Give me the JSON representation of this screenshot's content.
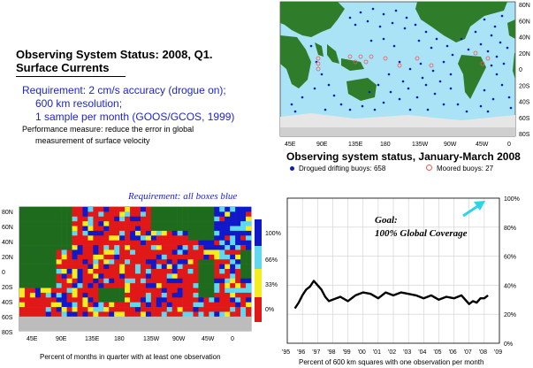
{
  "left_text": {
    "title_line1": "Observing System Status:  2008, Q1.",
    "title_line2": "Surface Currents",
    "requirement_1": "Requirement: 2 cm/s accuracy (drogue on);",
    "requirement_2": "600 km resolution;",
    "requirement_3": "1 sample per month (GOOS/GCOS, 1999)",
    "performance_1": "Performance measure: reduce the error in global",
    "performance_2": "measurement of surface velocity"
  },
  "buoy_map": {
    "lat_labels": [
      "80N",
      "60N",
      "40N",
      "20N",
      "0",
      "20S",
      "40S",
      "60S",
      "80S"
    ],
    "lon_labels": [
      "45E",
      "90E",
      "135E",
      "180",
      "135W",
      "90W",
      "45W",
      "0"
    ],
    "title": "Observing system status, January-March 2008",
    "legend_drifting": "Drogued drifting buoys: 658",
    "legend_moored": "Moored buoys: 27",
    "colors": {
      "ocean": "#a9e3f5",
      "land": "#2f7d2a",
      "ice": "#d8d8d8",
      "drifter": "#0b1fb5",
      "moored": "#e85c5c"
    }
  },
  "coverage_map": {
    "requirement_caption": "Requirement: all boxes blue",
    "lat_labels": [
      "80N",
      "60N",
      "40N",
      "20N",
      "0",
      "20S",
      "40S",
      "60S",
      "80S"
    ],
    "lon_labels": [
      "45E",
      "90E",
      "135E",
      "180",
      "135W",
      "90W",
      "45W",
      "0"
    ],
    "colorbar_labels": [
      "100%",
      "66%",
      "33%",
      "0%"
    ],
    "colorbar_colors": [
      "#1018c8",
      "#5fd8f0",
      "#f5ee1e",
      "#e01818"
    ],
    "xlabel": "Percent of months in quarter with at least one observation"
  },
  "chart_data": {
    "type": "line",
    "x": [
      1995.5,
      1995.75,
      1996.0,
      1996.25,
      1996.5,
      1996.75,
      1997.0,
      1997.25,
      1997.5,
      1997.75,
      1998.0,
      1998.5,
      1999.0,
      1999.5,
      2000.0,
      2000.5,
      2001.0,
      2001.5,
      2002.0,
      2002.5,
      2003.0,
      2003.5,
      2004.0,
      2004.5,
      2005.0,
      2005.5,
      2006.0,
      2006.5,
      2007.0,
      2007.25,
      2007.5,
      2007.75,
      2008.0,
      2008.25
    ],
    "y": [
      24,
      28,
      33,
      37,
      39,
      43,
      40,
      37,
      32,
      29,
      30,
      32,
      29,
      33,
      35,
      34,
      31,
      35,
      33,
      35,
      34,
      33,
      31,
      33,
      30,
      32,
      31,
      33,
      27,
      29,
      28,
      31,
      31,
      33
    ],
    "xticks": [
      "'95",
      "'96",
      "'97",
      "'98",
      "'99",
      "'00",
      "'01",
      "'02",
      "'03",
      "'04",
      "'05",
      "'06",
      "'07",
      "'08",
      "'09"
    ],
    "yticks": [
      "0%",
      "20%",
      "40%",
      "60%",
      "80%",
      "100%"
    ],
    "xlim": [
      1995,
      2009
    ],
    "ylim": [
      0,
      100
    ],
    "xlabel": "Percent of 600 km squares with one observation per month",
    "annotation_line1": "Goal:",
    "annotation_line2": "100% Global Coverage",
    "grid": true
  }
}
